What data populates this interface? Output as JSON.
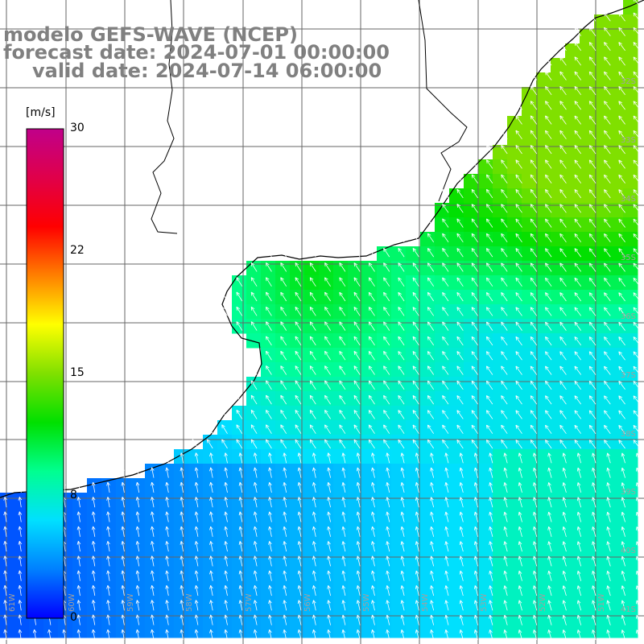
{
  "title": {
    "model_line": "modelo GEFS-WAVE (NCEP)",
    "forecast_line": "forecast date: 2024-07-01 00:00:00",
    "valid_line": "valid date: 2024-07-14 06:00:00"
  },
  "colorbar": {
    "unit": "[m/s]",
    "ticks": [
      "30",
      "22",
      "15",
      "8",
      "0"
    ],
    "colors": [
      "#0000ff",
      "#0080ff",
      "#00e0ff",
      "#00ff90",
      "#00e000",
      "#80e000",
      "#ffff00",
      "#ff8000",
      "#ff0000",
      "#e0004a",
      "#c0008a"
    ]
  },
  "map": {
    "lat_labels": [
      "32S",
      "33S",
      "34S",
      "35S",
      "36S",
      "37S",
      "38S",
      "39S",
      "40S",
      "41S"
    ],
    "lon_labels": [
      "61W",
      "60W",
      "59W",
      "58W",
      "57W",
      "56W",
      "55W",
      "54W",
      "53W",
      "52W",
      "51W"
    ],
    "land_color": "#ffffff",
    "grid_color": "#666666",
    "arrow_color": "#ffffff",
    "coast_color": "#000000"
  }
}
